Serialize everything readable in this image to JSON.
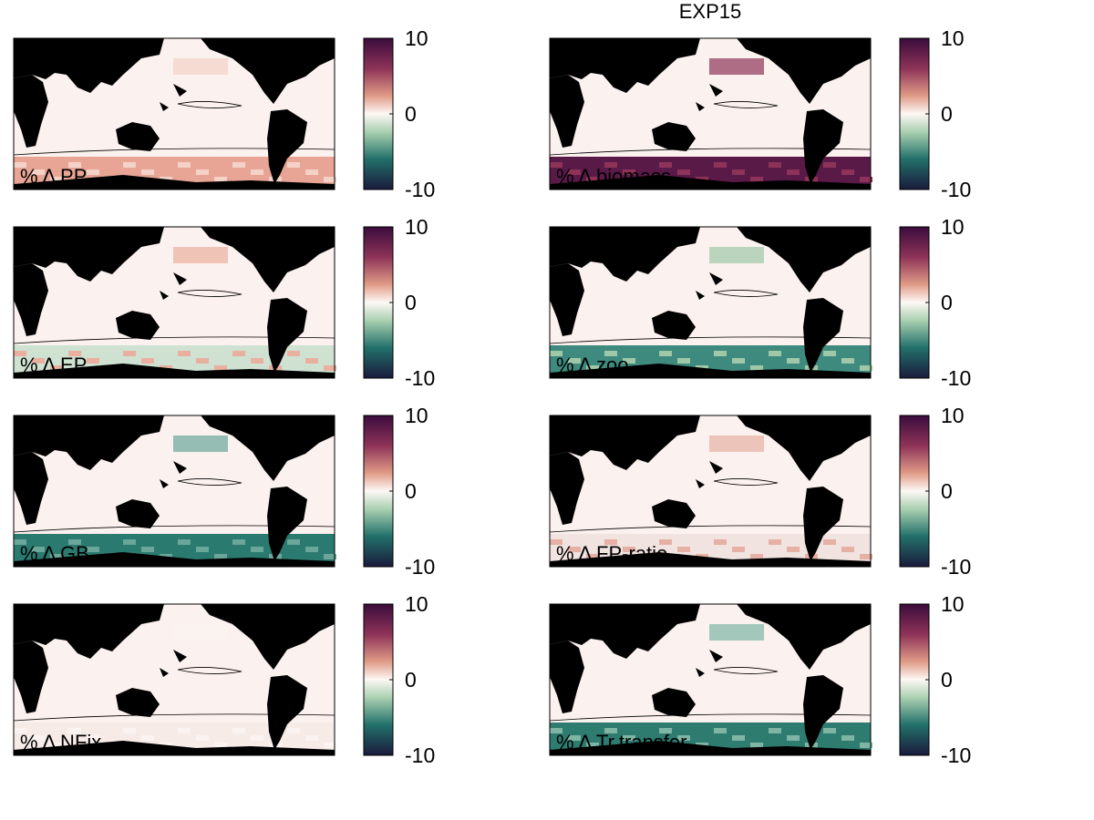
{
  "title": "EXP15",
  "panels": [
    {
      "label": "% Δ PP",
      "colorbar": {
        "lim": [
          -10,
          10
        ],
        "ticks": [
          10,
          0,
          -10
        ]
      }
    },
    {
      "label": "% Δ biomass",
      "colorbar": {
        "lim": [
          -10,
          10
        ],
        "ticks": [
          10,
          0,
          -10
        ]
      }
    },
    {
      "label": "% Δ EP",
      "colorbar": {
        "lim": [
          -10,
          10
        ],
        "ticks": [
          10,
          0,
          -10
        ]
      }
    },
    {
      "label": "% Δ zoo",
      "colorbar": {
        "lim": [
          -10,
          10
        ],
        "ticks": [
          10,
          0,
          -10
        ]
      }
    },
    {
      "label": "% Δ GB",
      "colorbar": {
        "lim": [
          -10,
          10
        ],
        "ticks": [
          10,
          0,
          -10
        ]
      }
    },
    {
      "label": "% Δ FP-ratio",
      "colorbar": {
        "lim": [
          -10,
          10
        ],
        "ticks": [
          10,
          0,
          -10
        ]
      }
    },
    {
      "label": "% Δ NFix",
      "colorbar": {
        "lim": [
          -10,
          10
        ],
        "ticks": [
          10,
          0,
          -10
        ]
      }
    },
    {
      "label": "% Δ Tr.transfer",
      "colorbar": {
        "lim": [
          -10,
          10
        ],
        "ticks": [
          10,
          0,
          -10
        ]
      }
    }
  ]
}
